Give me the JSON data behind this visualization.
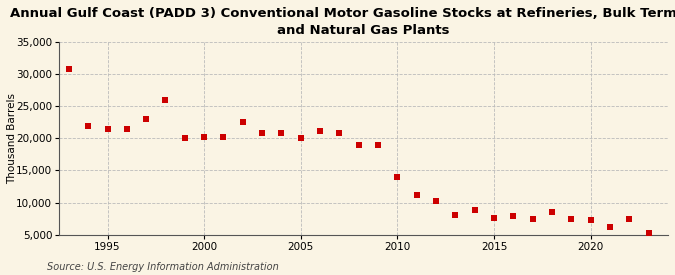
{
  "title": "Annual Gulf Coast (PADD 3) Conventional Motor Gasoline Stocks at Refineries, Bulk Terminals,\nand Natural Gas Plants",
  "ylabel": "Thousand Barrels",
  "source": "Source: U.S. Energy Information Administration",
  "background_color": "#faf4e4",
  "years": [
    1993,
    1994,
    1995,
    1996,
    1997,
    1998,
    1999,
    2000,
    2001,
    2002,
    2003,
    2004,
    2005,
    2006,
    2007,
    2008,
    2009,
    2010,
    2011,
    2012,
    2013,
    2014,
    2015,
    2016,
    2017,
    2018,
    2019,
    2020,
    2021,
    2022,
    2023
  ],
  "values": [
    30800,
    21900,
    21400,
    21500,
    23000,
    26000,
    20100,
    20300,
    20200,
    22500,
    20800,
    20900,
    20100,
    21100,
    20800,
    19000,
    19000,
    14000,
    11200,
    10200,
    8100,
    8900,
    7600,
    7900,
    7500,
    8600,
    7500,
    7300,
    6200,
    7500,
    5300
  ],
  "marker_color": "#cc0000",
  "marker_size": 4,
  "ylim": [
    5000,
    35000
  ],
  "yticks": [
    5000,
    10000,
    15000,
    20000,
    25000,
    30000,
    35000
  ],
  "xlim": [
    1992.5,
    2024
  ],
  "xticks": [
    1995,
    2000,
    2005,
    2010,
    2015,
    2020
  ],
  "grid_color": "#bbbbbb",
  "title_fontsize": 9.5,
  "axis_fontsize": 7.5,
  "tick_fontsize": 7.5,
  "source_fontsize": 7
}
